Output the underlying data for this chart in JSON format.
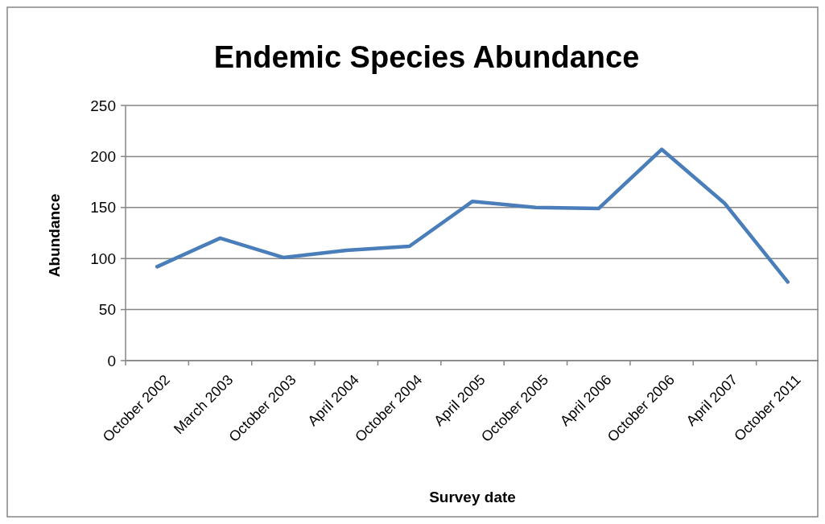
{
  "chart_data": {
    "type": "line",
    "title": "Endemic Species Abundance",
    "xlabel": "Survey date",
    "ylabel": "Abundance",
    "categories": [
      "October 2002",
      "March 2003",
      "October 2003",
      "April 2004",
      "October 2004",
      "April 2005",
      "October 2005",
      "April 2006",
      "October 2006",
      "April 2007",
      "October 2011"
    ],
    "series": [
      {
        "color": "#4a7ebb",
        "values": [
          92,
          120,
          101,
          108,
          112,
          156,
          150,
          149,
          207,
          154,
          77
        ]
      }
    ],
    "ylim": [
      0,
      250
    ],
    "yticks": [
      0,
      50,
      100,
      150,
      200,
      250
    ],
    "grid": "y",
    "marker": "none",
    "line_style": "solid"
  }
}
